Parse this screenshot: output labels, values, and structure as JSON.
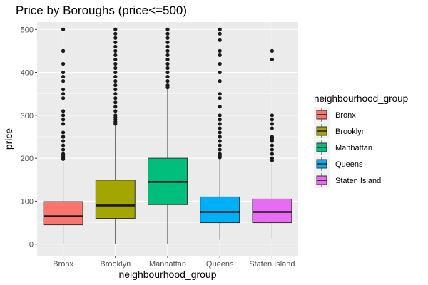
{
  "chart_data": {
    "type": "boxplot",
    "title": "Price by Boroughs (price<=500)",
    "xlabel": "neighbourhood_group",
    "ylabel": "price",
    "ylim": [
      0,
      500
    ],
    "yticks": [
      0,
      100,
      200,
      300,
      400,
      500
    ],
    "categories": [
      "Bronx",
      "Brooklyn",
      "Manhattan",
      "Queens",
      "Staten Island"
    ],
    "colors": [
      "#F8766D",
      "#A3A500",
      "#00BF7D",
      "#00B0F6",
      "#E76BF3"
    ],
    "legend": {
      "title": "neighbourhood_group",
      "position": "right"
    },
    "grid": true,
    "boxes": [
      {
        "q1": 45,
        "median": 65,
        "q3": 99,
        "whisker_low": 0,
        "whisker_high": 190,
        "outliers": [
          500,
          450,
          450,
          420,
          400,
          390,
          380,
          360,
          350,
          340,
          310,
          300,
          290,
          280,
          260,
          250,
          250,
          240,
          230,
          220,
          210,
          205,
          200,
          198
        ]
      },
      {
        "q1": 60,
        "median": 90,
        "q3": 149,
        "whisker_low": 0,
        "whisker_high": 277,
        "outliers": [
          500,
          490,
          480,
          470,
          460,
          450,
          440,
          430,
          420,
          410,
          400,
          390,
          380,
          370,
          360,
          350,
          340,
          330,
          320,
          310,
          300,
          295,
          290,
          285,
          280
        ]
      },
      {
        "q1": 92,
        "median": 145,
        "q3": 200,
        "whisker_low": 0,
        "whisker_high": 362,
        "outliers": [
          500,
          490,
          480,
          470,
          460,
          450,
          440,
          430,
          420,
          410,
          400,
          390,
          380,
          370,
          365
        ]
      },
      {
        "q1": 50,
        "median": 75,
        "q3": 110,
        "whisker_low": 10,
        "whisker_high": 199,
        "outliers": [
          500,
          490,
          475,
          450,
          440,
          420,
          400,
          380,
          350,
          340,
          320,
          300,
          290,
          280,
          270,
          260,
          250,
          240,
          230,
          220,
          210,
          205,
          202
        ]
      },
      {
        "q1": 50,
        "median": 75,
        "q3": 105,
        "whisker_low": 13,
        "whisker_high": 190,
        "outliers": [
          450,
          430,
          300,
          290,
          280,
          270,
          250,
          245,
          240,
          230,
          220,
          210,
          200,
          195
        ]
      }
    ]
  }
}
